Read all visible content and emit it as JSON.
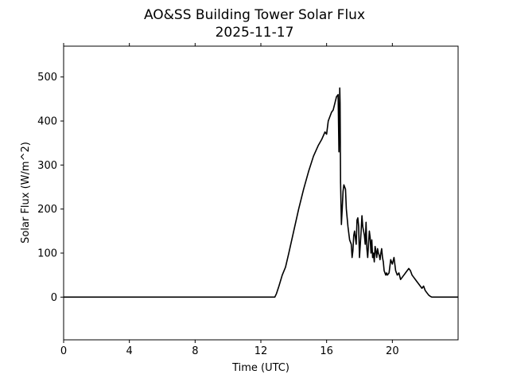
{
  "chart_data": {
    "type": "line",
    "title": "AO&SS Building Tower Solar Flux",
    "subtitle": "2025-11-17",
    "xlabel": "Time (UTC)",
    "ylabel": "Solar Flux (W/m^2)",
    "xlim": [
      0,
      24
    ],
    "ylim": [
      -97,
      570
    ],
    "xticks": [
      0,
      4,
      8,
      12,
      16,
      20
    ],
    "xtick_labels": [
      "0",
      "4",
      "8",
      "12",
      "16",
      "20"
    ],
    "yticks": [
      0,
      100,
      200,
      300,
      400,
      500
    ],
    "ytick_labels": [
      "0",
      "100",
      "200",
      "300",
      "400",
      "500"
    ],
    "grid": false,
    "line_color": "#000000",
    "series": [
      {
        "x": [
          0,
          12.5,
          12.85,
          12.95,
          13.1,
          13.3,
          13.5,
          13.7,
          14.0,
          14.3,
          14.6,
          14.9,
          15.2,
          15.5,
          15.7,
          15.9,
          16.0,
          16.1,
          16.2,
          16.3,
          16.4,
          16.5,
          16.6,
          16.7,
          16.75,
          16.8,
          16.82,
          16.85,
          16.9,
          16.92,
          16.95,
          17.0,
          17.05,
          17.1,
          17.15,
          17.2,
          17.3,
          17.4,
          17.5,
          17.55,
          17.6,
          17.65,
          17.7,
          17.8,
          17.85,
          17.9,
          17.95,
          18.0,
          18.1,
          18.15,
          18.2,
          18.3,
          18.35,
          18.4,
          18.45,
          18.5,
          18.6,
          18.65,
          18.7,
          18.75,
          18.8,
          18.85,
          18.9,
          18.95,
          19.0,
          19.05,
          19.1,
          19.15,
          19.2,
          19.25,
          19.3,
          19.35,
          19.4,
          19.45,
          19.5,
          19.55,
          19.6,
          19.65,
          19.7,
          19.8,
          19.9,
          20.0,
          20.1,
          20.2,
          20.3,
          20.4,
          20.5,
          20.6,
          20.7,
          20.8,
          20.9,
          21.0,
          21.1,
          21.2,
          21.3,
          21.4,
          21.5,
          21.6,
          21.7,
          21.8,
          21.9,
          22.0,
          22.1,
          22.2,
          22.3,
          22.35,
          22.4,
          22.5,
          22.6,
          22.8,
          23.0,
          24.0
        ],
        "y": [
          0,
          0,
          0,
          8,
          25,
          50,
          68,
          100,
          150,
          200,
          245,
          285,
          320,
          345,
          358,
          375,
          370,
          400,
          410,
          420,
          425,
          440,
          455,
          460,
          330,
          475,
          440,
          260,
          165,
          180,
          200,
          240,
          255,
          250,
          245,
          200,
          160,
          130,
          120,
          90,
          105,
          140,
          150,
          120,
          175,
          180,
          160,
          90,
          150,
          185,
          160,
          140,
          120,
          170,
          110,
          90,
          150,
          135,
          100,
          130,
          90,
          100,
          80,
          115,
          105,
          90,
          110,
          100,
          95,
          85,
          100,
          110,
          90,
          80,
          60,
          55,
          50,
          55,
          50,
          55,
          85,
          75,
          90,
          60,
          50,
          55,
          40,
          45,
          50,
          55,
          60,
          65,
          60,
          50,
          45,
          40,
          35,
          30,
          25,
          20,
          25,
          15,
          10,
          5,
          2,
          1,
          0,
          0,
          0,
          0,
          0,
          0
        ]
      }
    ]
  }
}
